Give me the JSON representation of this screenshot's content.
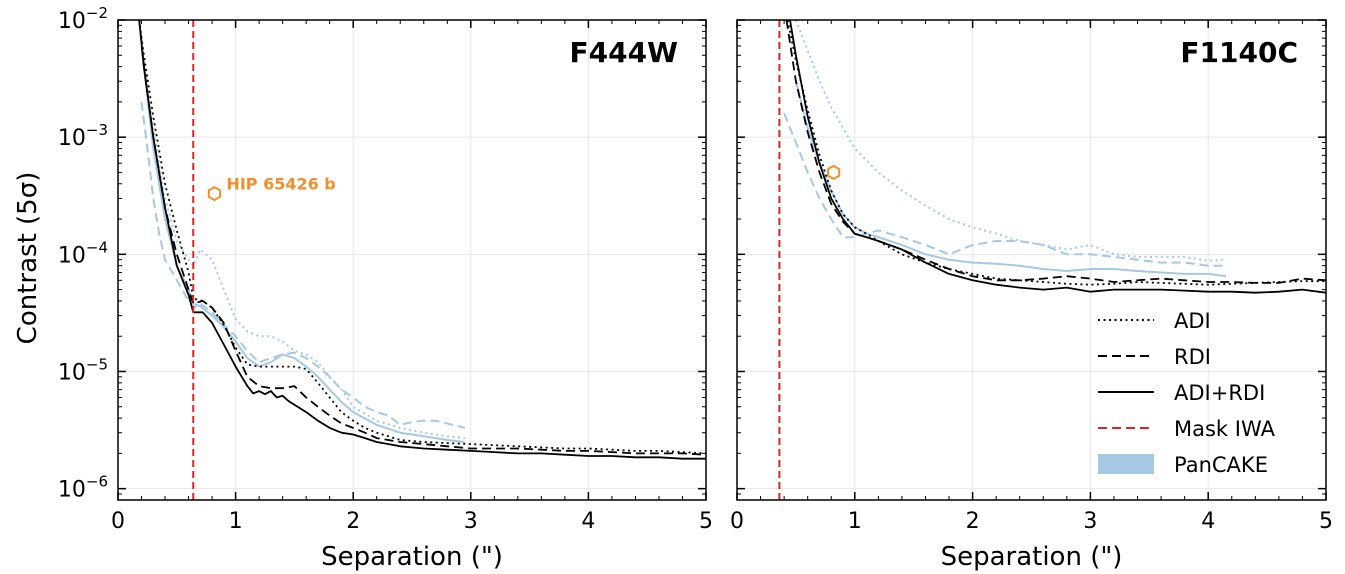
{
  "chart_data": [
    {
      "type": "line",
      "title": "F444W",
      "xlabel": "Separation (\")",
      "ylabel": "Contrast (5σ)",
      "xlim": [
        0,
        5
      ],
      "ylim": [
        8e-07,
        0.01
      ],
      "yscale": "log",
      "xticks": [
        0,
        1,
        2,
        3,
        4,
        5
      ],
      "yticks": [
        1e-06,
        1e-05,
        0.0001,
        0.001,
        0.01
      ],
      "ytick_labels": [
        {
          "base": "10",
          "exp": "−6"
        },
        {
          "base": "10",
          "exp": "−5"
        },
        {
          "base": "10",
          "exp": "−4"
        },
        {
          "base": "10",
          "exp": "−3"
        },
        {
          "base": "10",
          "exp": "−2"
        }
      ],
      "grid": true,
      "mask_iwa": 0.64,
      "series": [
        {
          "name": "ADI",
          "style": "dotted",
          "color": "#000000",
          "x": [
            0.18,
            0.22,
            0.3,
            0.4,
            0.5,
            0.6,
            0.64,
            0.72,
            0.8,
            0.9,
            1.0,
            1.1,
            1.2,
            1.3,
            1.4,
            1.5,
            1.6,
            1.7,
            1.8,
            1.9,
            2.0,
            2.1,
            2.2,
            2.3,
            2.4,
            2.6,
            2.8,
            3.0,
            3.2,
            3.4,
            3.6,
            3.8,
            4.0,
            4.2,
            4.4,
            4.6,
            4.8,
            5.0
          ],
          "y": [
            0.01,
            0.005,
            0.0015,
            0.0004,
            0.00016,
            7e-05,
            4.2e-05,
            4e-05,
            3.5e-05,
            2.5e-05,
            1.6e-05,
            1.15e-05,
            1.1e-05,
            1.1e-05,
            1.1e-05,
            1.1e-05,
            1.05e-05,
            8e-06,
            6e-06,
            4.5e-06,
            3.8e-06,
            3.3e-06,
            3e-06,
            2.8e-06,
            2.6e-06,
            2.5e-06,
            2.45e-06,
            2.4e-06,
            2.35e-06,
            2.3e-06,
            2.25e-06,
            2.2e-06,
            2.2e-06,
            2.15e-06,
            2.1e-06,
            2.1e-06,
            2.05e-06,
            2e-06
          ]
        },
        {
          "name": "RDI",
          "style": "dashed",
          "color": "#000000",
          "x": [
            0.18,
            0.22,
            0.3,
            0.4,
            0.5,
            0.6,
            0.64,
            0.72,
            0.8,
            0.9,
            1.0,
            1.1,
            1.2,
            1.3,
            1.4,
            1.5,
            1.6,
            1.7,
            1.8,
            1.9,
            2.0,
            2.1,
            2.2,
            2.4,
            2.6,
            2.8,
            3.0,
            3.2,
            3.4,
            3.6,
            3.8,
            4.0,
            4.2,
            4.4,
            4.6,
            4.8,
            5.0
          ],
          "y": [
            0.01,
            0.004,
            0.001,
            0.00025,
            0.0001,
            5e-05,
            3.8e-05,
            4e-05,
            3.5e-05,
            2.6e-05,
            1.5e-05,
            9e-06,
            7.5e-06,
            7.2e-06,
            7.2e-06,
            7.5e-06,
            6e-06,
            5e-06,
            4.2e-06,
            3.6e-06,
            3.3e-06,
            3e-06,
            2.7e-06,
            2.5e-06,
            2.4e-06,
            2.3e-06,
            2.2e-06,
            2.2e-06,
            2.2e-06,
            2.15e-06,
            2.1e-06,
            2.1e-06,
            2.05e-06,
            2e-06,
            2e-06,
            2e-06,
            1.95e-06
          ]
        },
        {
          "name": "ADI+RDI",
          "style": "solid",
          "color": "#000000",
          "x": [
            0.18,
            0.22,
            0.3,
            0.4,
            0.5,
            0.6,
            0.64,
            0.72,
            0.8,
            0.9,
            1.0,
            1.1,
            1.15,
            1.2,
            1.25,
            1.3,
            1.35,
            1.4,
            1.45,
            1.5,
            1.6,
            1.7,
            1.8,
            1.9,
            2.0,
            2.1,
            2.2,
            2.3,
            2.4,
            2.6,
            2.8,
            3.0,
            3.2,
            3.4,
            3.6,
            3.8,
            4.0,
            4.2,
            4.4,
            4.6,
            4.8,
            5.0
          ],
          "y": [
            0.01,
            0.004,
            0.001,
            0.00025,
            8e-05,
            4.5e-05,
            3.2e-05,
            3.2e-05,
            2.6e-05,
            1.7e-05,
            1.1e-05,
            7.5e-06,
            6.5e-06,
            6.8e-06,
            6.4e-06,
            6.8e-06,
            6e-06,
            6.2e-06,
            5.6e-06,
            5.2e-06,
            4.5e-06,
            3.8e-06,
            3.3e-06,
            3e-06,
            2.9e-06,
            2.7e-06,
            2.5e-06,
            2.4e-06,
            2.3e-06,
            2.2e-06,
            2.15e-06,
            2.1e-06,
            2.05e-06,
            2e-06,
            2e-06,
            1.95e-06,
            1.9e-06,
            1.9e-06,
            1.85e-06,
            1.85e-06,
            1.8e-06,
            1.8e-06
          ]
        },
        {
          "name": "PanCAKE ADI",
          "style": "dotted",
          "color": "#a6c8e4",
          "x": [
            0.2,
            0.3,
            0.4,
            0.5,
            0.6,
            0.64,
            0.7,
            0.8,
            0.9,
            1.0,
            1.1,
            1.2,
            1.3,
            1.4,
            1.5,
            1.6,
            1.7,
            1.8,
            1.9,
            2.0,
            2.2,
            2.4,
            2.6,
            2.8,
            2.95
          ],
          "y": [
            0.006,
            0.0012,
            0.0003,
            0.00013,
            9e-05,
            8e-05,
            0.00011,
            9e-05,
            5e-05,
            2.8e-05,
            2.2e-05,
            2e-05,
            2e-05,
            1.8e-05,
            1.5e-05,
            1.4e-05,
            1.2e-05,
            9e-06,
            7e-06,
            5e-06,
            3.8e-06,
            3.3e-06,
            3e-06,
            2.8e-06,
            2.7e-06
          ]
        },
        {
          "name": "PanCAKE RDI",
          "style": "dashed",
          "color": "#a6c8e4",
          "x": [
            0.2,
            0.25,
            0.3,
            0.35,
            0.4,
            0.5,
            0.6,
            0.64,
            0.7,
            0.8,
            0.9,
            1.0,
            1.1,
            1.2,
            1.3,
            1.4,
            1.5,
            1.6,
            1.7,
            1.8,
            1.9,
            2.0,
            2.1,
            2.2,
            2.3,
            2.4,
            2.5,
            2.6,
            2.7,
            2.8,
            2.95
          ],
          "y": [
            0.002,
            0.0008,
            0.0003,
            0.00015,
            9e-05,
            6e-05,
            4e-05,
            3.5e-05,
            3.8e-05,
            3.2e-05,
            2.5e-05,
            2e-05,
            1.5e-05,
            1.2e-05,
            1.3e-05,
            1.4e-05,
            1.45e-05,
            1.3e-05,
            1.1e-05,
            9e-06,
            7e-06,
            6e-06,
            5e-06,
            4.5e-06,
            4.2e-06,
            3.5e-06,
            3.7e-06,
            3.8e-06,
            3.8e-06,
            3.6e-06,
            3.3e-06
          ]
        },
        {
          "name": "PanCAKE ADI+RDI",
          "style": "solid",
          "color": "#a6c8e4",
          "x": [
            0.2,
            0.3,
            0.4,
            0.5,
            0.6,
            0.64,
            0.7,
            0.8,
            0.9,
            1.0,
            1.1,
            1.2,
            1.3,
            1.4,
            1.5,
            1.6,
            1.7,
            1.8,
            1.9,
            2.0,
            2.2,
            2.4,
            2.6,
            2.8,
            2.95
          ],
          "y": [
            0.006,
            0.0008,
            0.0002,
            8e-05,
            5e-05,
            3.8e-05,
            3.6e-05,
            3e-05,
            2.4e-05,
            1.8e-05,
            1.3e-05,
            1.1e-05,
            1.2e-05,
            1.4e-05,
            1.3e-05,
            1.1e-05,
            9e-06,
            7e-06,
            5.5e-06,
            4.5e-06,
            3.5e-06,
            3e-06,
            2.8e-06,
            2.6e-06,
            2.5e-06
          ]
        }
      ],
      "annotations": [
        {
          "text": "HIP 65426 b",
          "x": 0.82,
          "y": 0.00033,
          "marker": "hexagon",
          "color": "#f28e2b"
        }
      ]
    },
    {
      "type": "line",
      "title": "F1140C",
      "xlabel": "Separation (\")",
      "xlim": [
        0,
        5
      ],
      "ylim": [
        8e-07,
        0.01
      ],
      "yscale": "log",
      "xticks": [
        0,
        1,
        2,
        3,
        4,
        5
      ],
      "grid": true,
      "mask_iwa": 0.36,
      "series": [
        {
          "name": "ADI",
          "style": "dotted",
          "color": "#000000",
          "x": [
            0.43,
            0.5,
            0.6,
            0.7,
            0.8,
            0.9,
            1.0,
            1.1,
            1.2,
            1.4,
            1.6,
            1.8,
            2.0,
            2.2,
            2.4,
            2.6,
            2.8,
            3.0,
            3.2,
            3.4,
            3.6,
            3.8,
            4.0,
            4.2,
            4.4,
            4.6,
            4.8,
            5.0
          ],
          "y": [
            0.01,
            0.0045,
            0.0017,
            0.0007,
            0.00035,
            0.00022,
            0.00017,
            0.00015,
            0.00013,
            0.0001,
            8.5e-05,
            7.5e-05,
            6.8e-05,
            6.2e-05,
            6e-05,
            5.8e-05,
            5.6e-05,
            5.5e-05,
            5.6e-05,
            5.8e-05,
            5.7e-05,
            5.6e-05,
            5.5e-05,
            5.6e-05,
            5.7e-05,
            5.8e-05,
            5.9e-05,
            5.9e-05
          ]
        },
        {
          "name": "RDI",
          "style": "dashed",
          "color": "#000000",
          "x": [
            0.42,
            0.5,
            0.6,
            0.7,
            0.8,
            0.9,
            1.0,
            1.1,
            1.2,
            1.4,
            1.6,
            1.8,
            2.0,
            2.2,
            2.4,
            2.6,
            2.8,
            3.0,
            3.2,
            3.4,
            3.6,
            3.8,
            4.0,
            4.2,
            4.4,
            4.6,
            4.8,
            5.0
          ],
          "y": [
            0.01,
            0.003,
            0.0011,
            0.0005,
            0.00027,
            0.00019,
            0.00015,
            0.00014,
            0.00013,
            0.00011,
            9e-05,
            7.5e-05,
            6.5e-05,
            6e-05,
            6e-05,
            6.2e-05,
            6.5e-05,
            6.2e-05,
            5.8e-05,
            6e-05,
            6.2e-05,
            6e-05,
            5.8e-05,
            5.8e-05,
            5.7e-05,
            5.7e-05,
            6.2e-05,
            6e-05
          ]
        },
        {
          "name": "ADI+RDI",
          "style": "solid",
          "color": "#000000",
          "x": [
            0.45,
            0.5,
            0.6,
            0.7,
            0.8,
            0.9,
            1.0,
            1.1,
            1.2,
            1.4,
            1.6,
            1.8,
            2.0,
            2.2,
            2.4,
            2.6,
            2.8,
            3.0,
            3.2,
            3.4,
            3.6,
            3.8,
            4.0,
            4.2,
            4.4,
            4.6,
            4.8,
            5.0
          ],
          "y": [
            0.01,
            0.005,
            0.0015,
            0.0006,
            0.0003,
            0.0002,
            0.00015,
            0.00014,
            0.00013,
            0.00011,
            8.5e-05,
            6.8e-05,
            6e-05,
            5.5e-05,
            5.2e-05,
            5e-05,
            5.2e-05,
            4.8e-05,
            5e-05,
            5e-05,
            5e-05,
            4.9e-05,
            4.8e-05,
            4.8e-05,
            4.7e-05,
            4.8e-05,
            5e-05,
            4.7e-05
          ]
        },
        {
          "name": "PanCAKE ADI",
          "style": "dotted",
          "color": "#a6c8e4",
          "x": [
            0.5,
            0.6,
            0.7,
            0.8,
            0.9,
            1.0,
            1.2,
            1.4,
            1.6,
            1.8,
            2.0,
            2.2,
            2.4,
            2.6,
            2.8,
            3.0,
            3.2,
            3.4,
            3.6,
            3.8,
            4.0,
            4.15
          ],
          "y": [
            0.01,
            0.0055,
            0.003,
            0.0018,
            0.0012,
            0.0008,
            0.0005,
            0.00035,
            0.00026,
            0.0002,
            0.00017,
            0.00015,
            0.00013,
            0.00012,
            0.00011,
            0.00012,
            0.0001,
            9.5e-05,
            9.5e-05,
            9.5e-05,
            8.8e-05,
            9e-05
          ]
        },
        {
          "name": "PanCAKE RDI",
          "style": "dashed",
          "color": "#a6c8e4",
          "x": [
            0.4,
            0.5,
            0.6,
            0.7,
            0.8,
            0.9,
            1.0,
            1.1,
            1.2,
            1.4,
            1.6,
            1.8,
            2.0,
            2.2,
            2.4,
            2.6,
            2.8,
            3.0,
            3.2,
            3.4,
            3.6,
            3.8,
            4.0,
            4.15
          ],
          "y": [
            0.0016,
            0.0009,
            0.0005,
            0.0003,
            0.0002,
            0.00014,
            0.00014,
            0.00015,
            0.00016,
            0.00014,
            0.00012,
            0.0001,
            0.00012,
            0.00013,
            0.00013,
            0.00012,
            0.0001,
            0.0001,
            9.5e-05,
            9e-05,
            8.5e-05,
            8.5e-05,
            8e-05,
            8e-05
          ]
        },
        {
          "name": "PanCAKE ADI+RDI",
          "style": "solid",
          "color": "#a6c8e4",
          "x": [
            0.5,
            0.6,
            0.7,
            0.8,
            0.9,
            1.0,
            1.1,
            1.2,
            1.4,
            1.6,
            1.8,
            2.0,
            2.2,
            2.4,
            2.6,
            2.8,
            3.0,
            3.2,
            3.4,
            3.6,
            3.8,
            4.0,
            4.15
          ],
          "y": [
            0.003,
            0.0012,
            0.0006,
            0.00035,
            0.00022,
            0.00017,
            0.00015,
            0.00014,
            0.00012,
            0.0001,
            9e-05,
            8.5e-05,
            8.3e-05,
            8e-05,
            7.5e-05,
            7.2e-05,
            7.5e-05,
            7.5e-05,
            7.2e-05,
            7e-05,
            6.8e-05,
            6.8e-05,
            6.5e-05
          ]
        }
      ],
      "annotations": [
        {
          "text": "",
          "x": 0.82,
          "y": 0.0005,
          "marker": "hexagon",
          "color": "#f28e2b"
        }
      ]
    }
  ],
  "legend": {
    "placement": "lower-right of right panel",
    "entries": [
      {
        "label": "ADI",
        "style": "dotted",
        "color": "#000000"
      },
      {
        "label": "RDI",
        "style": "dashed",
        "color": "#000000"
      },
      {
        "label": "ADI+RDI",
        "style": "solid",
        "color": "#000000"
      },
      {
        "label": "Mask IWA",
        "style": "dashed",
        "color": "#d62728"
      },
      {
        "label": "PanCAKE",
        "style": "band",
        "color": "#a6c8e4"
      }
    ]
  },
  "colors": {
    "mask_iwa": "#d62728",
    "pancake": "#a6c8e4",
    "planet": "#f28e2b"
  }
}
